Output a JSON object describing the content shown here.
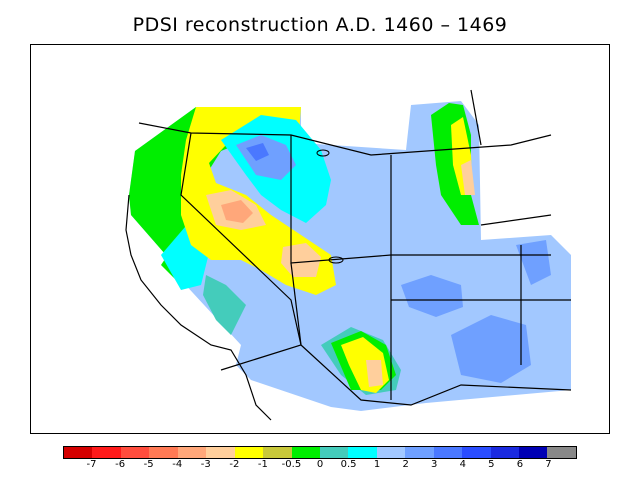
{
  "title": "PDSI reconstruction A.D. 1460 – 1469",
  "colorbar": {
    "colors": [
      "#d40000",
      "#ff1a1a",
      "#ff4d3d",
      "#ff7a55",
      "#ffa77a",
      "#ffcf9c",
      "#ffff00",
      "#c8c83a",
      "#00ee00",
      "#44ccbb",
      "#00ffff",
      "#a2c8ff",
      "#6fa0ff",
      "#4a78ff",
      "#2a4dff",
      "#1a2ae0",
      "#0000b4",
      "#888888"
    ],
    "labels": [
      "-7",
      "-6",
      "-5",
      "-4",
      "-3",
      "-2",
      "-1",
      "-0.5",
      "0",
      "0.5",
      "1",
      "2",
      "3",
      "4",
      "5",
      "6",
      "7"
    ]
  }
}
